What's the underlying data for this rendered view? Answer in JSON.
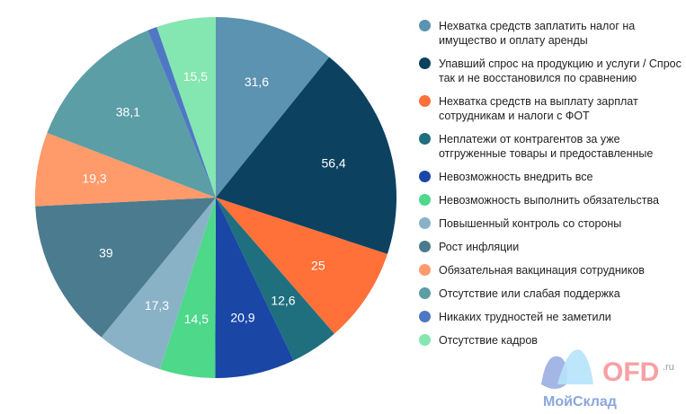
{
  "chart_data": {
    "type": "pie",
    "slices": [
      {
        "label": "Нехватка средств заплатить налог на имущество и оплату аренды",
        "value": 31.6,
        "color": "#5b93b0"
      },
      {
        "label": "Упавший спрос на продукцию  и услуги / Спрос так и не восстановился по сравнению",
        "value": 56.4,
        "color": "#0d4160"
      },
      {
        "label": "Нехватка средств на выплату зарплат сотрудникам и налоги с ФОТ",
        "value": 25,
        "color": "#ff7139"
      },
      {
        "label": "Неплатежи от контрагентов за уже отгруженные товары и предоставленные",
        "value": 12.6,
        "color": "#1f6f7f"
      },
      {
        "label": "Невозможность внедрить все",
        "value": 20.9,
        "color": "#1a46a6"
      },
      {
        "label": "Невозможность выполнить обязательства",
        "value": 14.5,
        "color": "#4dd88a"
      },
      {
        "label": "Повышенный контроль со стороны",
        "value": 17.3,
        "color": "#8ab2c6"
      },
      {
        "label": "Рост инфляции",
        "value": 39,
        "color": "#4b7b8e"
      },
      {
        "label": "Обязательная вакцинация сотрудников",
        "value": 19.3,
        "color": "#ff9a6a"
      },
      {
        "label": "Отсутствие или слабая поддержка",
        "value": 38.1,
        "color": "#5b9ea6"
      },
      {
        "label": "Никаких трудностей не заметили",
        "value": 2.5,
        "color": "#4f78c4",
        "show_label": false
      },
      {
        "label": "Отсутствие кадров",
        "value": 15.5,
        "color": "#84e6b0"
      }
    ],
    "legend_placement": "right"
  },
  "labels": [
    "31,6",
    "56,4",
    "25",
    "12,6",
    "20,9",
    "14,5",
    "17,3",
    "39",
    "19,3",
    "38,1",
    "",
    "15,5"
  ],
  "watermark": {
    "brand1": "МойСклад",
    "brand2": "OFD",
    "brand2_suffix": ".ru"
  }
}
